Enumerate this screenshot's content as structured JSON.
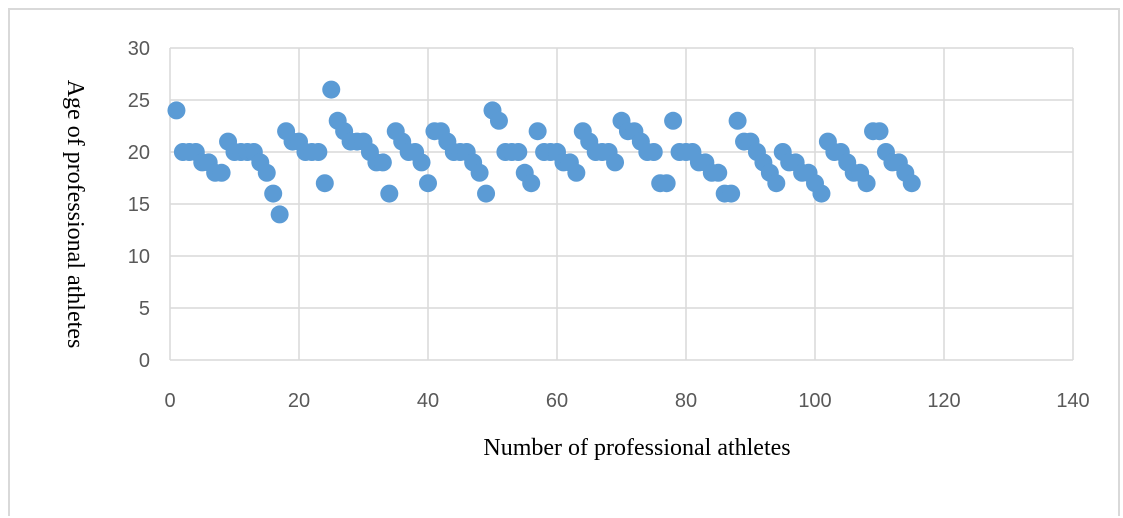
{
  "chart_data": {
    "type": "scatter",
    "xlabel": "Number of professional athletes",
    "ylabel": "Age of professional athletes",
    "xlim": [
      0,
      140
    ],
    "ylim": [
      0,
      30
    ],
    "x_ticks": [
      0,
      20,
      40,
      60,
      80,
      100,
      120,
      140
    ],
    "y_ticks": [
      0,
      5,
      10,
      15,
      20,
      25,
      30
    ],
    "grid": "vertical and horizontal major gridlines",
    "marker_color": "#5b9bd5",
    "series": [
      {
        "x": [
          1,
          2,
          3,
          4,
          5,
          6,
          7,
          8,
          9,
          10,
          11,
          12,
          13,
          14,
          15,
          16,
          17,
          18,
          19,
          20,
          21,
          22,
          23,
          24,
          25,
          26,
          27,
          28,
          29,
          30,
          31,
          32,
          33,
          34,
          35,
          36,
          37,
          38,
          39,
          40,
          41,
          42,
          43,
          44,
          45,
          46,
          47,
          48,
          49,
          50,
          51,
          52,
          53,
          54,
          55,
          56,
          57,
          58,
          59,
          60,
          61,
          62,
          63,
          64,
          65,
          66,
          67,
          68,
          69,
          70,
          71,
          72,
          73,
          74,
          75,
          76,
          77,
          78,
          79,
          80,
          81,
          82,
          83,
          84,
          85,
          86,
          87,
          88,
          89,
          90,
          91,
          92,
          93,
          94,
          95,
          96,
          97,
          98,
          99,
          100,
          101,
          102,
          103,
          104,
          105,
          106,
          107,
          108,
          109,
          110,
          111,
          112,
          113,
          114,
          115
        ],
        "y": [
          24,
          20,
          20,
          20,
          19,
          19,
          18,
          18,
          21,
          20,
          20,
          20,
          20,
          19,
          18,
          16,
          14,
          22,
          21,
          21,
          20,
          20,
          20,
          17,
          26,
          23,
          22,
          21,
          21,
          21,
          20,
          19,
          19,
          16,
          22,
          21,
          20,
          20,
          19,
          17,
          22,
          22,
          21,
          20,
          20,
          20,
          19,
          18,
          16,
          24,
          23,
          20,
          20,
          20,
          18,
          17,
          22,
          20,
          20,
          20,
          19,
          19,
          18,
          22,
          21,
          20,
          20,
          20,
          19,
          23,
          22,
          22,
          21,
          20,
          20,
          17,
          17,
          23,
          20,
          20,
          20,
          19,
          19,
          18,
          18,
          16,
          16,
          23,
          21,
          21,
          20,
          19,
          18,
          17,
          20,
          19,
          19,
          18,
          18,
          17,
          16,
          21,
          20,
          20,
          19,
          18,
          18,
          17,
          22,
          22,
          20,
          19,
          19,
          18,
          17
        ]
      }
    ]
  }
}
